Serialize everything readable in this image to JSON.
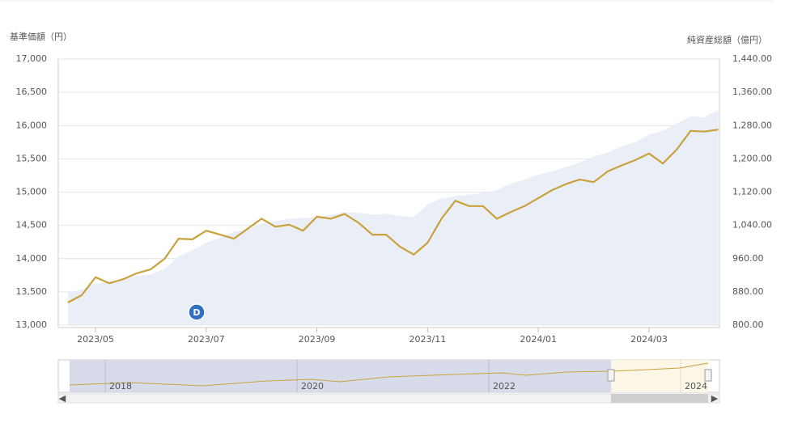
{
  "chart_data": {
    "type": "line",
    "y_axis_title": "基準価額（円）",
    "y2_axis_title": "純資産総額（億円）",
    "categories": [
      null,
      null,
      "2023/05",
      null,
      null,
      null,
      null,
      null,
      null,
      null,
      "2023/07",
      null,
      null,
      null,
      null,
      null,
      null,
      null,
      "2023/09",
      null,
      null,
      null,
      null,
      null,
      null,
      null,
      "2023/11",
      null,
      null,
      null,
      null,
      null,
      null,
      null,
      "2024/01",
      null,
      null,
      null,
      null,
      null,
      null,
      null,
      "2024/03",
      null,
      null,
      null,
      null,
      null
    ],
    "series": [
      {
        "type": "area",
        "axis": "y2",
        "color": "#eaeef6",
        "values": [
          878,
          885,
          900,
          905,
          910,
          918,
          922,
          935,
          965,
          980,
          998,
          1010,
          1025,
          1030,
          1045,
          1050,
          1056,
          1058,
          1060,
          1065,
          1072,
          1070,
          1066,
          1068,
          1062,
          1060,
          1090,
          1105,
          1110,
          1114,
          1118,
          1125,
          1140,
          1150,
          1162,
          1170,
          1180,
          1192,
          1205,
          1215,
          1230,
          1240,
          1258,
          1268,
          1285,
          1302,
          1300,
          1318
        ]
      },
      {
        "type": "line",
        "color": "#c9a23e",
        "values": [
          13340,
          13450,
          13720,
          13630,
          13690,
          13780,
          13840,
          14000,
          14300,
          14290,
          14420,
          14360,
          14300,
          14450,
          14600,
          14480,
          14510,
          14420,
          14630,
          14600,
          14670,
          14540,
          14360,
          14360,
          14180,
          14060,
          14240,
          14600,
          14870,
          14790,
          14790,
          14600,
          14700,
          14790,
          14910,
          15030,
          15120,
          15190,
          15150,
          15310,
          15400,
          15480,
          15580,
          15430,
          15640,
          15920,
          15910,
          15940
        ]
      }
    ],
    "ylim": [
      13000,
      17000
    ],
    "yticks": [
      {
        "value": 13000,
        "label": "13,000"
      },
      {
        "value": 13500,
        "label": "13,500"
      },
      {
        "value": 14000,
        "label": "14,000"
      },
      {
        "value": 14500,
        "label": "14,500"
      },
      {
        "value": 15000,
        "label": "15,000"
      },
      {
        "value": 15500,
        "label": "15,500"
      },
      {
        "value": 16000,
        "label": "16,000"
      },
      {
        "value": 16500,
        "label": "16,500"
      },
      {
        "value": 17000,
        "label": "17,000"
      }
    ],
    "y2lim": [
      800,
      1440
    ],
    "y2ticks": [
      {
        "value": 800,
        "label": "800.00"
      },
      {
        "value": 880,
        "label": "880.00"
      },
      {
        "value": 960,
        "label": "960.00"
      },
      {
        "value": 1040,
        "label": "1,040.00"
      },
      {
        "value": 1120,
        "label": "1,120.00"
      },
      {
        "value": 1200,
        "label": "1,200.00"
      },
      {
        "value": 1280,
        "label": "1,280.00"
      },
      {
        "value": 1360,
        "label": "1,360.00"
      },
      {
        "value": 1440,
        "label": "1,440.00"
      }
    ],
    "grid": true,
    "flag": "D",
    "navigator_labels": [
      "2018",
      "2020",
      "2022",
      "2024"
    ]
  }
}
